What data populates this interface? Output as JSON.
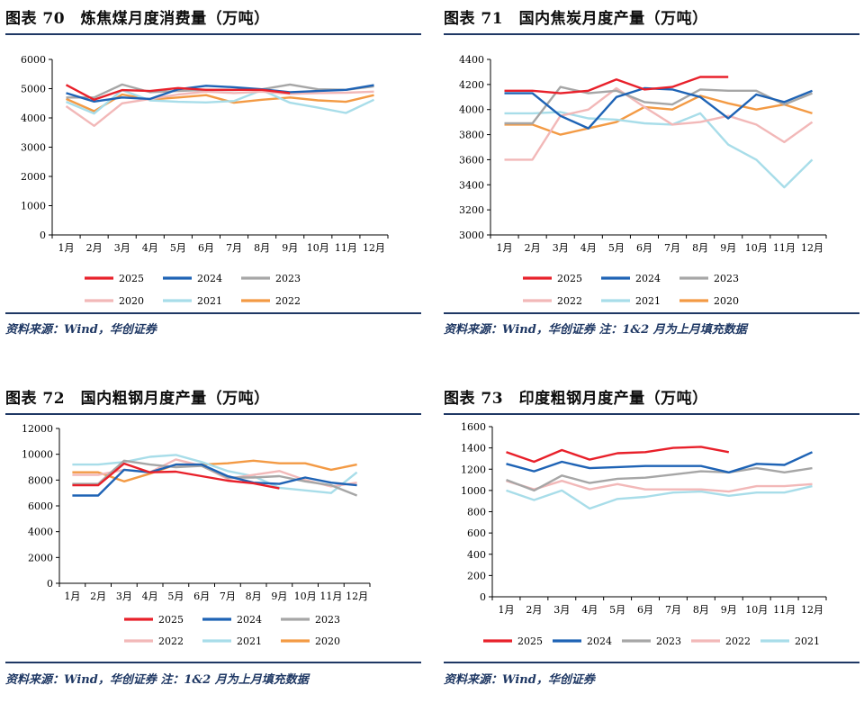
{
  "charts": [
    {
      "title": "图表 70　炼焦煤月度消费量（万吨）",
      "source": "资料来源：Wind，华创证券",
      "chart_data": {
        "type": "line",
        "title": "炼焦煤月度消费量（万吨）",
        "categories": [
          "1月",
          "2月",
          "3月",
          "4月",
          "5月",
          "6月",
          "7月",
          "8月",
          "9月",
          "10月",
          "11月",
          "12月"
        ],
        "ylim": [
          0,
          6000
        ],
        "yticks": [
          0,
          1000,
          2000,
          3000,
          4000,
          5000,
          6000
        ],
        "series": [
          {
            "name": "2025",
            "color": "#e8202a",
            "values": [
              5130,
              4620,
              4950,
              4920,
              5020,
              4960,
              4960,
              4960,
              4850,
              null,
              null,
              null
            ]
          },
          {
            "name": "2024",
            "color": "#1e63b5",
            "values": [
              4850,
              4560,
              4700,
              4650,
              4980,
              5100,
              5050,
              4980,
              4880,
              4920,
              4960,
              5120
            ]
          },
          {
            "name": "2023",
            "color": "#a6a6a6",
            "values": [
              4700,
              4700,
              5140,
              4880,
              4920,
              4960,
              4950,
              4980,
              5140,
              4980,
              4960,
              5080
            ]
          },
          {
            "name": "2020",
            "color": "#f2b8b8",
            "values": [
              4400,
              3730,
              4500,
              4650,
              4800,
              4900,
              4850,
              4900,
              4820,
              4850,
              4860,
              4900
            ]
          },
          {
            "name": "2021",
            "color": "#a8dde9",
            "values": [
              4550,
              4150,
              4950,
              4600,
              4550,
              4530,
              4580,
              4950,
              4520,
              4350,
              4170,
              4620
            ]
          },
          {
            "name": "2022",
            "color": "#f39a44",
            "values": [
              4650,
              4230,
              4800,
              4630,
              4700,
              4780,
              4520,
              4620,
              4700,
              4600,
              4550,
              4780
            ]
          }
        ],
        "legend_rows": [
          [
            "2025",
            "2024",
            "2023"
          ],
          [
            "2020",
            "2021",
            "2022"
          ]
        ]
      }
    },
    {
      "title": "图表 71　国内焦炭月度产量（万吨）",
      "source": "资料来源：Wind，华创证券 注：1&2 月为上月填充数据",
      "chart_data": {
        "type": "line",
        "title": "国内焦炭月度产量（万吨）",
        "categories": [
          "1月",
          "2月",
          "3月",
          "4月",
          "5月",
          "6月",
          "7月",
          "8月",
          "9月",
          "10月",
          "11月",
          "12月"
        ],
        "ylim": [
          3000,
          4400
        ],
        "yticks": [
          3000,
          3200,
          3400,
          3600,
          3800,
          4000,
          4200,
          4400
        ],
        "series": [
          {
            "name": "2025",
            "color": "#e8202a",
            "values": [
              4150,
              4150,
              4130,
              4150,
              4240,
              4160,
              4180,
              4260,
              4260,
              null,
              null,
              null
            ]
          },
          {
            "name": "2024",
            "color": "#1e63b5",
            "values": [
              4130,
              4130,
              3950,
              3850,
              4100,
              4170,
              4160,
              4100,
              3930,
              4120,
              4060,
              4150
            ]
          },
          {
            "name": "2023",
            "color": "#a6a6a6",
            "values": [
              3890,
              3890,
              4180,
              4130,
              4150,
              4060,
              4040,
              4160,
              4150,
              4150,
              4040,
              4130
            ]
          },
          {
            "name": "2022",
            "color": "#f2b8b8",
            "values": [
              3600,
              3600,
              3950,
              4000,
              4170,
              4020,
              3880,
              3900,
              3950,
              3880,
              3740,
              3900
            ]
          },
          {
            "name": "2021",
            "color": "#a8dde9",
            "values": [
              3970,
              3970,
              3980,
              3930,
              3920,
              3890,
              3880,
              3970,
              3720,
              3600,
              3380,
              3600
            ]
          },
          {
            "name": "2020",
            "color": "#f39a44",
            "values": [
              3880,
              3880,
              3800,
              3850,
              3900,
              4020,
              4000,
              4110,
              4050,
              4000,
              4040,
              3970
            ]
          }
        ],
        "legend_rows": [
          [
            "2025",
            "2024",
            "2023"
          ],
          [
            "2022",
            "2021",
            "2020"
          ]
        ]
      }
    },
    {
      "title": "图表 72　国内粗钢月度产量（万吨）",
      "source": "资料来源：Wind，华创证券 注：1&2 月为上月填充数据",
      "chart_data": {
        "type": "line",
        "title": "国内粗钢月度产量（万吨）",
        "categories": [
          "1月",
          "2月",
          "3月",
          "4月",
          "5月",
          "6月",
          "7月",
          "8月",
          "9月",
          "10月",
          "11月",
          "12月"
        ],
        "ylim": [
          0,
          12000
        ],
        "yticks": [
          0,
          2000,
          4000,
          6000,
          8000,
          10000,
          12000
        ],
        "series": [
          {
            "name": "2025",
            "color": "#e8202a",
            "values": [
              7600,
              7600,
              9280,
              8600,
              8650,
              8300,
              7950,
              7750,
              7350,
              null,
              null,
              null
            ]
          },
          {
            "name": "2024",
            "color": "#1e63b5",
            "values": [
              6800,
              6800,
              8800,
              8600,
              9200,
              9200,
              8300,
              7800,
              7700,
              8200,
              7800,
              7600
            ]
          },
          {
            "name": "2023",
            "color": "#a6a6a6",
            "values": [
              7700,
              7700,
              9500,
              9200,
              9000,
              9100,
              8200,
              8200,
              8300,
              7900,
              7600,
              6800
            ]
          },
          {
            "name": "2022",
            "color": "#f2b8b8",
            "values": [
              8400,
              8400,
              8800,
              8600,
              9600,
              9100,
              8100,
              8400,
              8700,
              8000,
              7500,
              7800
            ]
          },
          {
            "name": "2021",
            "color": "#a8dde9",
            "values": [
              9200,
              9200,
              9400,
              9800,
              9950,
              9400,
              8700,
              8300,
              7400,
              7200,
              7000,
              8600
            ]
          },
          {
            "name": "2020",
            "color": "#f39a44",
            "values": [
              8600,
              8600,
              7900,
              8500,
              9200,
              9200,
              9300,
              9500,
              9300,
              9300,
              8800,
              9200
            ]
          }
        ],
        "legend_rows": [
          [
            "2025",
            "2024",
            "2023"
          ],
          [
            "2022",
            "2021",
            "2020"
          ]
        ]
      }
    },
    {
      "title": "图表 73　印度粗钢月度产量（万吨）",
      "source": "资料来源：Wind，华创证券",
      "chart_data": {
        "type": "line",
        "title": "印度粗钢月度产量（万吨）",
        "categories": [
          "1月",
          "2月",
          "3月",
          "4月",
          "5月",
          "6月",
          "7月",
          "8月",
          "9月",
          "10月",
          "11月",
          "12月"
        ],
        "ylim": [
          0,
          1600
        ],
        "yticks": [
          0,
          200,
          400,
          600,
          800,
          1000,
          1200,
          1400,
          1600
        ],
        "series": [
          {
            "name": "2025",
            "color": "#e8202a",
            "values": [
              1360,
              1270,
              1380,
              1290,
              1350,
              1360,
              1400,
              1410,
              1360,
              null,
              null,
              null
            ]
          },
          {
            "name": "2024",
            "color": "#1e63b5",
            "values": [
              1250,
              1180,
              1270,
              1210,
              1220,
              1230,
              1230,
              1230,
              1170,
              1250,
              1240,
              1360
            ]
          },
          {
            "name": "2023",
            "color": "#a6a6a6",
            "values": [
              1100,
              1000,
              1140,
              1070,
              1110,
              1120,
              1150,
              1180,
              1170,
              1210,
              1170,
              1210
            ]
          },
          {
            "name": "2022",
            "color": "#f2b8b8",
            "values": [
              1090,
              1010,
              1090,
              1010,
              1060,
              1010,
              1010,
              1010,
              990,
              1040,
              1040,
              1060
            ]
          },
          {
            "name": "2021",
            "color": "#a8dde9",
            "values": [
              1000,
              910,
              1000,
              830,
              920,
              940,
              980,
              990,
              950,
              980,
              980,
              1040
            ]
          }
        ],
        "legend_rows": [
          [
            "2025",
            "2024",
            "2023",
            "2022",
            "2021"
          ]
        ]
      }
    }
  ]
}
